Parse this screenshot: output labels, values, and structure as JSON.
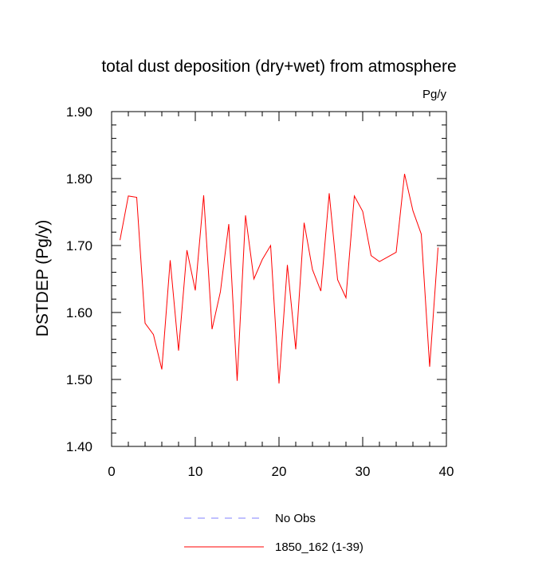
{
  "chart_data": {
    "type": "line",
    "title": "total dust deposition (dry+wet) from atmosphere",
    "units": "Pg/y",
    "ylabel": "DSTDEP  (Pg/y)",
    "xlabel": "",
    "xlim": [
      0,
      40
    ],
    "ylim": [
      1.4,
      1.9
    ],
    "x_ticks": [
      0,
      10,
      20,
      30,
      40
    ],
    "x_tick_labels": [
      "0",
      "10",
      "20",
      "30",
      "40"
    ],
    "y_ticks": [
      1.4,
      1.5,
      1.6,
      1.7,
      1.8,
      1.9
    ],
    "y_tick_labels": [
      "1.40",
      "1.50",
      "1.60",
      "1.70",
      "1.80",
      "1.90"
    ],
    "grid": false,
    "legend_position": "bottom",
    "series": [
      {
        "name": "1850_162 (1-39)",
        "color": "#ff0000",
        "dash": "solid",
        "x": [
          1,
          2,
          3,
          4,
          5,
          6,
          7,
          8,
          9,
          10,
          11,
          12,
          13,
          14,
          15,
          16,
          17,
          18,
          19,
          20,
          21,
          22,
          23,
          24,
          25,
          26,
          27,
          28,
          29,
          30,
          31,
          32,
          33,
          34,
          35,
          36,
          37,
          38,
          39
        ],
        "y": [
          1.708,
          1.774,
          1.772,
          1.584,
          1.567,
          1.515,
          1.678,
          1.543,
          1.693,
          1.633,
          1.775,
          1.575,
          1.631,
          1.732,
          1.498,
          1.745,
          1.65,
          1.679,
          1.7,
          1.494,
          1.671,
          1.545,
          1.734,
          1.664,
          1.632,
          1.778,
          1.649,
          1.622,
          1.774,
          1.751,
          1.685,
          1.676,
          1.683,
          1.69,
          1.807,
          1.752,
          1.717,
          1.519,
          1.697
        ]
      }
    ],
    "legend": [
      {
        "label": "No Obs",
        "color": "#8080ff",
        "dash": "dashed"
      },
      {
        "label": "1850_162 (1-39)",
        "color": "#ff0000",
        "dash": "solid"
      }
    ]
  }
}
